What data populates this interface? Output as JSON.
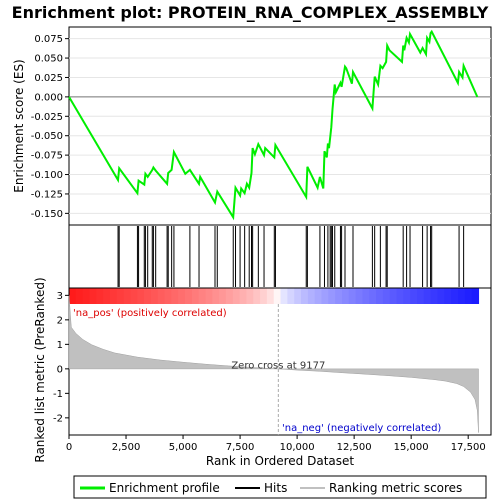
{
  "chart_data": {
    "type": "line",
    "title": "Enrichment plot: PROTEIN_RNA_COMPLEX_ASSEMBLY",
    "xlabel": "Rank in Ordered Dataset",
    "ylabel_top": "Enrichment score (ES)",
    "ylabel_bottom": "Ranked list metric (PreRanked)",
    "xlim": [
      0,
      18500
    ],
    "x_ticks": [
      0,
      2500,
      5000,
      7500,
      10000,
      12500,
      15000,
      17500
    ],
    "x_tick_labels": [
      "0",
      "2,500",
      "5,000",
      "7,500",
      "10,000",
      "12,500",
      "15,000",
      "17,500"
    ],
    "es_ylim": [
      -0.165,
      0.09
    ],
    "es_ticks": [
      0.075,
      0.05,
      0.025,
      0.0,
      -0.025,
      -0.05,
      -0.075,
      -0.1,
      -0.125,
      -0.15
    ],
    "es_tick_labels": [
      "0.075",
      "0.050",
      "0.025",
      "0.000",
      "-0.025",
      "-0.050",
      "-0.075",
      "-0.100",
      "-0.125",
      "-0.150"
    ],
    "metric_ylim": [
      -2.7,
      3.3
    ],
    "metric_ticks": [
      3,
      2,
      1,
      0,
      -1,
      -2
    ],
    "metric_tick_labels": [
      "3",
      "2",
      "1",
      "0",
      "-1",
      "-2"
    ],
    "zero_cross": 9177,
    "zero_cross_label": "Zero cross at 9177",
    "pos_label": "'na_pos' (positively correlated)",
    "neg_label": "'na_neg' (negatively correlated)",
    "colors": {
      "es_line": "#00ee00",
      "hits": "#000000",
      "metric_fill": "#c0c0c0",
      "pos_label": "#dd0000",
      "neg_label": "#0000cc",
      "zero_line": "#aaaaaa"
    },
    "series": [
      {
        "name": "Enrichment profile",
        "x": [
          0,
          2150,
          2200,
          3000,
          3050,
          3300,
          3350,
          3450,
          3650,
          3700,
          3800,
          4300,
          4350,
          4500,
          4600,
          5100,
          5300,
          5700,
          5750,
          6400,
          6500,
          7200,
          7300,
          7500,
          7550,
          7700,
          7800,
          7900,
          8000,
          8050,
          8150,
          8300,
          8550,
          8600,
          9000,
          9050,
          10400,
          10450,
          10900,
          11000,
          11150,
          11200,
          11300,
          11350,
          11400,
          11450,
          11500,
          11550,
          11650,
          11700,
          11900,
          11950,
          12100,
          12150,
          12400,
          12450,
          13300,
          13400,
          13550,
          13650,
          13750,
          13900,
          13950,
          14050,
          14600,
          14650,
          14700,
          14800,
          14900,
          14950,
          15400,
          15500,
          15650,
          15700,
          15800,
          15850,
          15900,
          17050,
          17100,
          17250,
          17300,
          17900
        ],
        "y": [
          0.0,
          -0.107,
          -0.092,
          -0.124,
          -0.108,
          -0.113,
          -0.099,
          -0.103,
          -0.094,
          -0.091,
          -0.095,
          -0.112,
          -0.098,
          -0.094,
          -0.071,
          -0.099,
          -0.094,
          -0.112,
          -0.103,
          -0.136,
          -0.122,
          -0.155,
          -0.117,
          -0.127,
          -0.118,
          -0.124,
          -0.112,
          -0.117,
          -0.098,
          -0.066,
          -0.074,
          -0.061,
          -0.075,
          -0.066,
          -0.078,
          -0.062,
          -0.129,
          -0.09,
          -0.117,
          -0.103,
          -0.118,
          -0.07,
          -0.078,
          -0.06,
          -0.066,
          -0.052,
          -0.039,
          -0.016,
          0.016,
          0.006,
          0.018,
          0.013,
          0.039,
          0.037,
          0.017,
          0.032,
          -0.015,
          0.026,
          0.016,
          0.04,
          0.037,
          0.045,
          0.066,
          0.06,
          0.045,
          0.066,
          0.06,
          0.076,
          0.07,
          0.081,
          0.057,
          0.063,
          0.055,
          0.076,
          0.071,
          0.082,
          0.084,
          0.018,
          0.032,
          0.025,
          0.04,
          0.0
        ]
      }
    ],
    "hits": [
      2150,
      2200,
      3000,
      3050,
      3300,
      3350,
      3450,
      3650,
      3700,
      3800,
      4300,
      4350,
      4500,
      4600,
      5300,
      5700,
      6400,
      6500,
      7200,
      7300,
      7500,
      7700,
      7900,
      8000,
      8050,
      8300,
      8550,
      9000,
      9050,
      10400,
      10450,
      11000,
      11200,
      11350,
      11450,
      11500,
      11550,
      11650,
      11900,
      11950,
      12100,
      12450,
      13300,
      13400,
      13650,
      13900,
      13950,
      14650,
      14800,
      14950,
      15500,
      15700,
      15850,
      15900,
      17100,
      17300
    ],
    "metric_curve": {
      "x": [
        0,
        100,
        300,
        600,
        1000,
        1500,
        2000,
        3000,
        4000,
        5000,
        6000,
        7000,
        8000,
        9177,
        10000,
        11000,
        12000,
        13000,
        14000,
        15000,
        16000,
        16500,
        17000,
        17300,
        17600,
        17800,
        17900,
        17950
      ],
      "y": [
        3.0,
        1.7,
        1.45,
        1.2,
        0.98,
        0.8,
        0.65,
        0.48,
        0.36,
        0.27,
        0.19,
        0.12,
        0.06,
        0.0,
        -0.05,
        -0.1,
        -0.16,
        -0.22,
        -0.28,
        -0.35,
        -0.44,
        -0.5,
        -0.6,
        -0.72,
        -0.95,
        -1.25,
        -1.7,
        -2.6
      ]
    },
    "legend": [
      "Enrichment profile",
      "Hits",
      "Ranking metric scores"
    ]
  }
}
